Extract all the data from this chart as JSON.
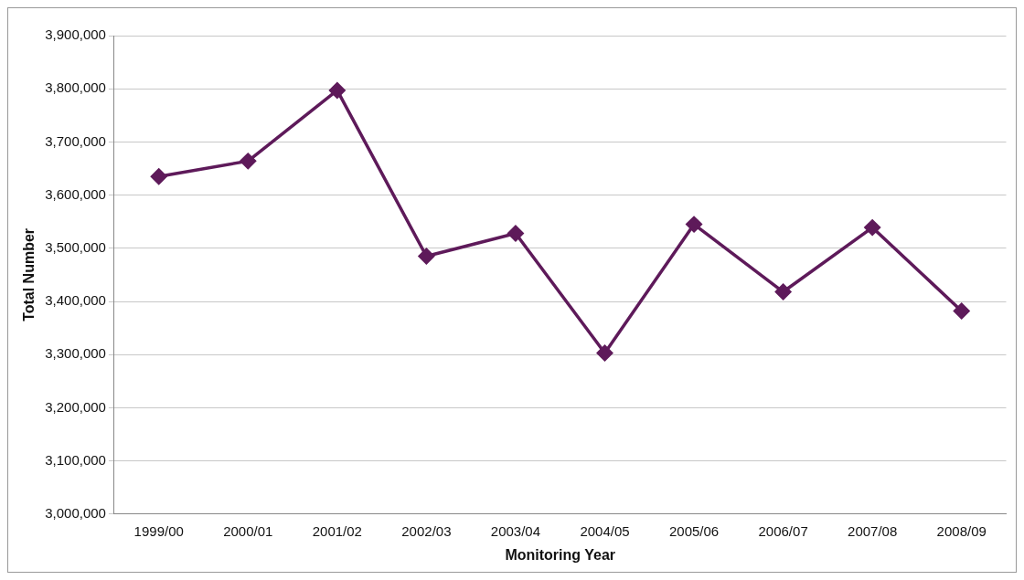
{
  "chart_data": {
    "type": "line",
    "xlabel": "Monitoring Year",
    "ylabel": "Total Number",
    "categories": [
      "1999/00",
      "2000/01",
      "2001/02",
      "2002/03",
      "2003/04",
      "2004/05",
      "2005/06",
      "2006/07",
      "2007/08",
      "2008/09"
    ],
    "series": [
      {
        "color": "#5e1a5a",
        "values": [
          3635000,
          3664000,
          3797000,
          3485000,
          3528000,
          3303000,
          3545000,
          3418000,
          3539000,
          3382000
        ]
      }
    ],
    "ylim": [
      3000000,
      3900000
    ],
    "yticks": [
      {
        "value": 3000000,
        "label": "3,000,000"
      },
      {
        "value": 3100000,
        "label": "3,100,000"
      },
      {
        "value": 3200000,
        "label": "3,200,000"
      },
      {
        "value": 3300000,
        "label": "3,300,000"
      },
      {
        "value": 3400000,
        "label": "3,400,000"
      },
      {
        "value": 3500000,
        "label": "3,500,000"
      },
      {
        "value": 3600000,
        "label": "3,600,000"
      },
      {
        "value": 3700000,
        "label": "3,700,000"
      },
      {
        "value": 3800000,
        "label": "3,800,000"
      },
      {
        "value": 3900000,
        "label": "3,900,000"
      }
    ],
    "grid": "y",
    "legend": false,
    "marker": "diamond",
    "line_style": "solid"
  }
}
